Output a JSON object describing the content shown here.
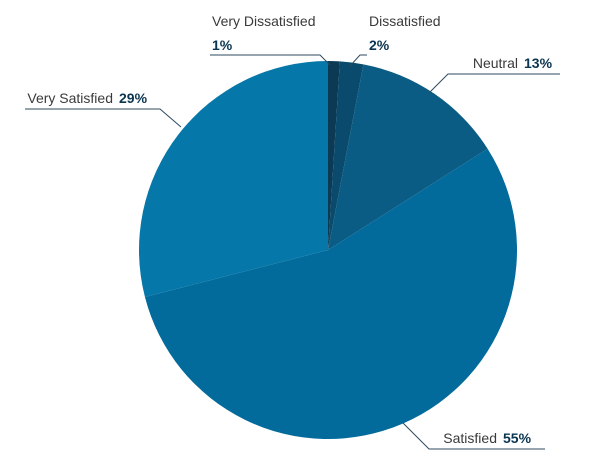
{
  "chart_data": {
    "type": "pie",
    "slices": [
      {
        "label": "Very Dissatisfied",
        "value": 1,
        "value_label": "1%",
        "color": "#0c3a55"
      },
      {
        "label": "Dissatisfied",
        "value": 2,
        "value_label": "2%",
        "color": "#0a4a6c"
      },
      {
        "label": "Neutral",
        "value": 13,
        "value_label": "13%",
        "color": "#0b5c84"
      },
      {
        "label": "Satisfied",
        "value": 55,
        "value_label": "55%",
        "color": "#036a9c"
      },
      {
        "label": "Very Satisfied",
        "value": 29,
        "value_label": "29%",
        "color": "#0677a9"
      }
    ],
    "start_angle": "12 o'clock",
    "direction": "clockwise",
    "legend": "none (callout labels)"
  }
}
